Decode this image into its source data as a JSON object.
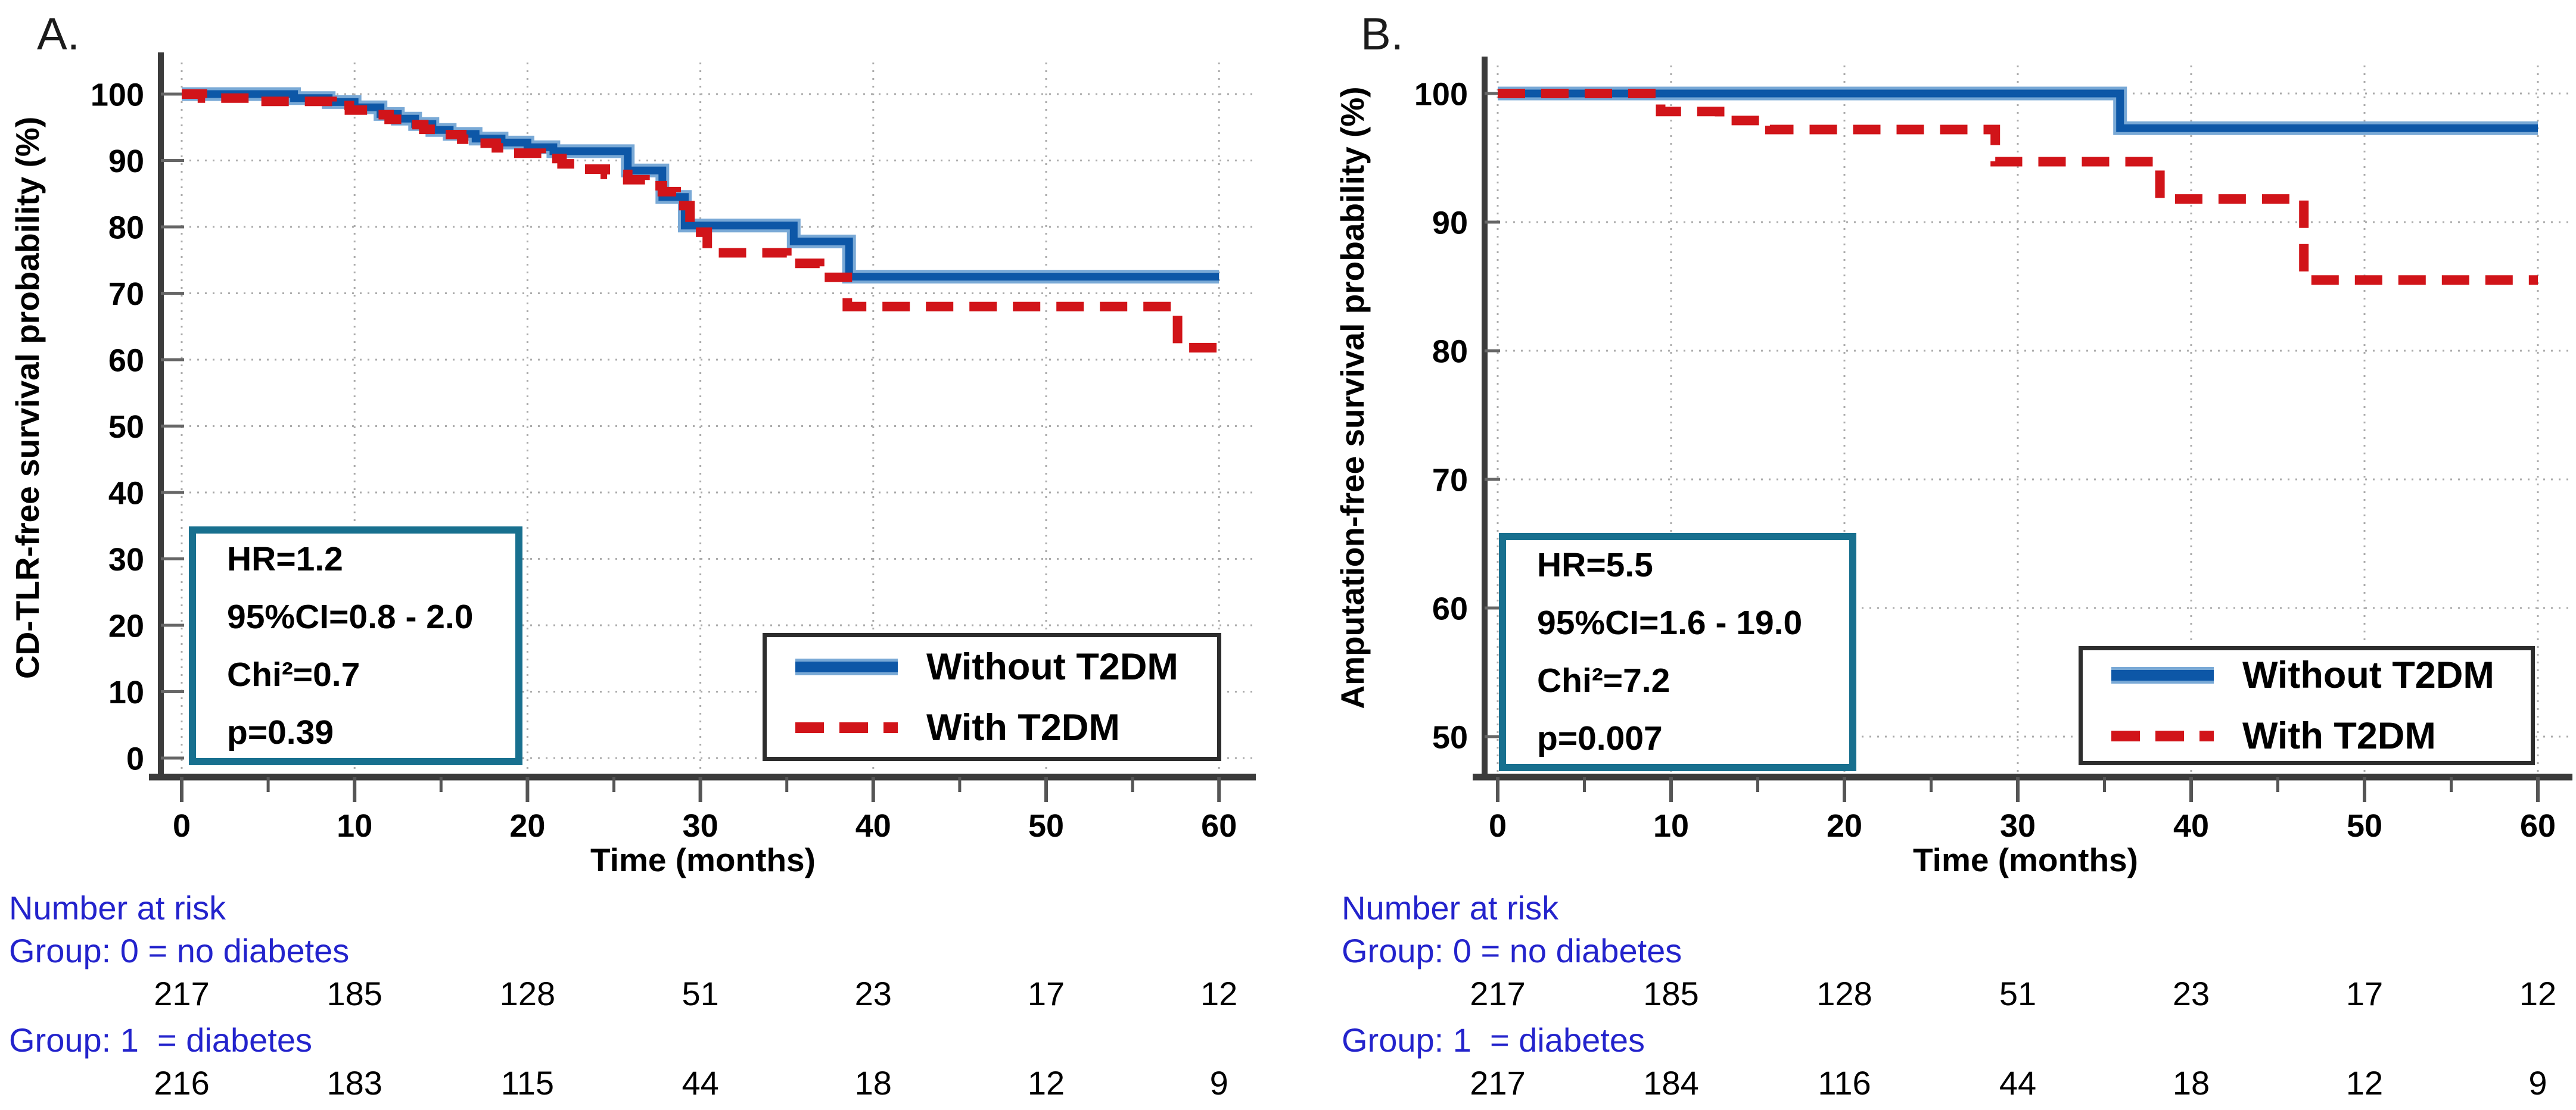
{
  "colors": {
    "blue": "#0d57a7",
    "blue_halo": "#79a9d6",
    "red": "#d11419",
    "stats_border": "#18708f",
    "legend_border": "#2d2d2d",
    "risk_label_blue": "#2323cc",
    "axis": "#3b3b3b",
    "grid": "#ababab",
    "text": "#000000"
  },
  "chart_data": [
    {
      "id": "A",
      "type": "line",
      "panel_label": "A.",
      "xlabel": "Time (months)",
      "ylabel": "CD-TLR-free survival probability (%)",
      "xlim": [
        0,
        60
      ],
      "ylim": [
        0,
        100
      ],
      "xticks": [
        0,
        10,
        20,
        30,
        40,
        50,
        60
      ],
      "yticks": [
        0,
        10,
        20,
        30,
        40,
        50,
        60,
        70,
        80,
        90,
        100
      ],
      "grid": true,
      "legend": {
        "position": "bottom-right",
        "entries": [
          {
            "label": "Without T2DM",
            "color": "#0d57a7",
            "style": "solid"
          },
          {
            "label": "With T2DM",
            "color": "#d11419",
            "style": "dashed"
          }
        ]
      },
      "stats": {
        "lines": [
          "HR=1.2",
          "95%CI=0.8 - 2.0",
          "Chi²=0.7",
          "p=0.39"
        ]
      },
      "series": [
        {
          "name": "Without T2DM",
          "style": "solid",
          "steps": [
            [
              0,
              100
            ],
            [
              6.5,
              99.4
            ],
            [
              8.5,
              98.8
            ],
            [
              10,
              98.0
            ],
            [
              11.5,
              97.0
            ],
            [
              12.5,
              96.3
            ],
            [
              13.5,
              95.5
            ],
            [
              14.5,
              94.6
            ],
            [
              15.5,
              94.0
            ],
            [
              17,
              93.3
            ],
            [
              18.5,
              92.7
            ],
            [
              20,
              92.0
            ],
            [
              21.5,
              91.4
            ],
            [
              25.8,
              88.5
            ],
            [
              27.8,
              84.5
            ],
            [
              29.1,
              80.2
            ],
            [
              35.4,
              77.8
            ],
            [
              38.6,
              72.5
            ],
            [
              60,
              72.5
            ]
          ]
        },
        {
          "name": "With T2DM",
          "style": "dashed",
          "steps": [
            [
              0,
              100
            ],
            [
              1.2,
              99.4
            ],
            [
              4,
              98.9
            ],
            [
              8.7,
              98.3
            ],
            [
              9.7,
              97.6
            ],
            [
              11,
              96.9
            ],
            [
              12,
              96.2
            ],
            [
              13,
              95.4
            ],
            [
              14,
              94.7
            ],
            [
              15.2,
              93.9
            ],
            [
              16.2,
              93.2
            ],
            [
              17.2,
              92.6
            ],
            [
              18.2,
              91.9
            ],
            [
              19.5,
              91.1
            ],
            [
              20.8,
              90.3
            ],
            [
              22,
              89.5
            ],
            [
              23.2,
              88.7
            ],
            [
              24.5,
              87.9
            ],
            [
              25.8,
              87.1
            ],
            [
              26.8,
              86.2
            ],
            [
              27.8,
              85.3
            ],
            [
              28.6,
              83.2
            ],
            [
              29.4,
              79.2
            ],
            [
              30.4,
              76.1
            ],
            [
              35,
              74.5
            ],
            [
              36.9,
              72.4
            ],
            [
              38.5,
              68.0
            ],
            [
              57.6,
              61.8
            ],
            [
              60,
              61.8
            ]
          ]
        }
      ],
      "risk_table": {
        "title": "Number at risk",
        "groups": [
          {
            "label": "Group: 0 = no diabetes",
            "values": [
              "217",
              "185",
              "128",
              "51",
              "23",
              "17",
              "12"
            ]
          },
          {
            "label": "Group: 1  = diabetes",
            "values": [
              "216",
              "183",
              "115",
              "44",
              "18",
              "12",
              "9"
            ]
          }
        ]
      }
    },
    {
      "id": "B",
      "type": "line",
      "panel_label": "B.",
      "xlabel": "Time (months)",
      "ylabel": "Amputation-free survival probability (%)",
      "xlim": [
        0,
        60
      ],
      "ylim": [
        50,
        100
      ],
      "xticks": [
        0,
        10,
        20,
        30,
        40,
        50,
        60
      ],
      "yticks": [
        50,
        60,
        70,
        80,
        90,
        100
      ],
      "grid": true,
      "legend": {
        "position": "bottom-right",
        "entries": [
          {
            "label": "Without T2DM",
            "color": "#0d57a7",
            "style": "solid"
          },
          {
            "label": "With T2DM",
            "color": "#d11419",
            "style": "dashed"
          }
        ]
      },
      "stats": {
        "lines": [
          "HR=5.5",
          "95%CI=1.6 - 19.0",
          "Chi²=7.2",
          "p=0.007"
        ]
      },
      "series": [
        {
          "name": "Without T2DM",
          "style": "solid",
          "steps": [
            [
              0,
              100
            ],
            [
              35.9,
              97.3
            ],
            [
              60,
              97.3
            ]
          ]
        },
        {
          "name": "With T2DM",
          "style": "dashed",
          "steps": [
            [
              0,
              100
            ],
            [
              9.4,
              98.6
            ],
            [
              12.8,
              97.9
            ],
            [
              15.7,
              97.2
            ],
            [
              28.7,
              94.7
            ],
            [
              38.2,
              91.8
            ],
            [
              46.5,
              85.5
            ],
            [
              60,
              85.5
            ]
          ]
        }
      ],
      "risk_table": {
        "title": "Number at risk",
        "groups": [
          {
            "label": "Group: 0 = no diabetes",
            "values": [
              "217",
              "185",
              "128",
              "51",
              "23",
              "17",
              "12"
            ]
          },
          {
            "label": "Group: 1  = diabetes",
            "values": [
              "217",
              "184",
              "116",
              "44",
              "18",
              "12",
              "9"
            ]
          }
        ]
      }
    }
  ]
}
